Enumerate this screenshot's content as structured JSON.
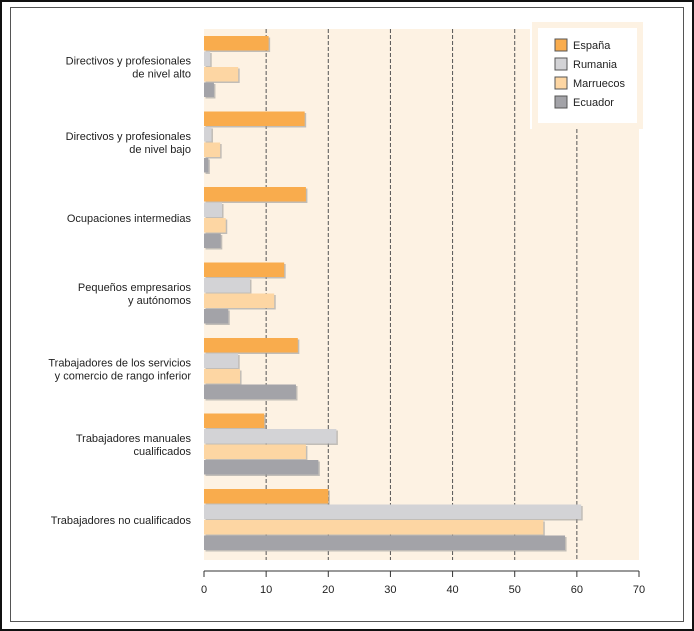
{
  "chart_data": {
    "type": "bar",
    "orientation": "horizontal",
    "title": "",
    "xlabel": "",
    "ylabel": "",
    "xlim": [
      0,
      70
    ],
    "xticks": [
      0,
      10,
      20,
      30,
      40,
      50,
      60,
      70
    ],
    "grid": "vertical-dashed",
    "legend_position": "top-right",
    "categories": [
      [
        "Directivos y profesionales",
        "de nivel alto"
      ],
      [
        "Directivos y profesionales",
        "de nivel bajo"
      ],
      [
        "Ocupaciones intermedias"
      ],
      [
        "Pequeños empresarios",
        "y autónomos"
      ],
      [
        "Trabajadores de los servicios",
        "y comercio de rango inferior"
      ],
      [
        "Trabajadores manuales",
        "cualificados"
      ],
      [
        "Trabajadores no cualificados"
      ]
    ],
    "series": [
      {
        "name": "España",
        "color": "#f9ac4d",
        "values": [
          10.4,
          16.2,
          16.4,
          12.9,
          15.1,
          9.7,
          20.0
        ]
      },
      {
        "name": "Rumania",
        "color": "#d3d3d6",
        "values": [
          1.0,
          1.2,
          2.9,
          7.4,
          5.5,
          21.3,
          60.7
        ]
      },
      {
        "name": "Marruecos",
        "color": "#fdd6a3",
        "values": [
          5.5,
          2.6,
          3.5,
          11.3,
          5.8,
          16.4,
          54.6
        ]
      },
      {
        "name": "Ecuador",
        "color": "#a3a3a8",
        "values": [
          1.6,
          0.7,
          2.7,
          3.9,
          14.8,
          18.4,
          58.1
        ]
      }
    ],
    "background_color": "#fdf2e3"
  }
}
